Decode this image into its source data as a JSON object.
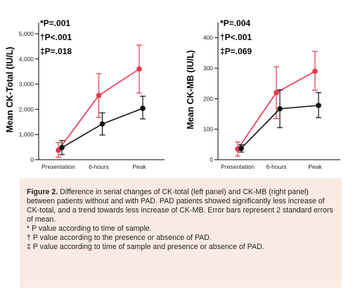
{
  "colors": {
    "pad": "#e8364e",
    "no_pad": "#111111",
    "caption_bg": "#f9ebe4"
  },
  "chart_data": [
    {
      "type": "line",
      "ylabel": "Mean CK-Total (IU/L)",
      "ylim": [
        0,
        5000
      ],
      "yticks": [
        "0",
        "1,000",
        "2,000",
        "3,000",
        "4,000",
        "5,000"
      ],
      "yticks_values": [
        0,
        1000,
        2000,
        3000,
        4000,
        5000
      ],
      "categories": [
        "Presentation",
        "6-hours",
        "Peak"
      ],
      "pvalues": [
        "*P=.001",
        "†P<.001",
        "‡P=.018"
      ],
      "series": [
        {
          "values": [
            380,
            2550,
            3600
          ],
          "err_low": [
            100,
            1680,
            2650
          ],
          "err_high": [
            680,
            3420,
            4550
          ]
        },
        {
          "values": [
            480,
            1420,
            2040
          ],
          "err_low": [
            200,
            980,
            1620
          ],
          "err_high": [
            760,
            1860,
            2520
          ]
        }
      ]
    },
    {
      "type": "line",
      "ylabel": "Mean CK-MB (IU/L)",
      "ylim": [
        0,
        420
      ],
      "yticks": [
        "0",
        "100",
        "200",
        "300",
        "400"
      ],
      "yticks_values": [
        0,
        100,
        200,
        300,
        400
      ],
      "categories": [
        "Presentation",
        "6-hours",
        "Peak"
      ],
      "pvalues": [
        "*P=.004",
        "†P<.001",
        "‡P=.069"
      ],
      "series": [
        {
          "values": [
            35,
            220,
            290
          ],
          "err_low": [
            12,
            135,
            228
          ],
          "err_high": [
            58,
            305,
            355
          ]
        },
        {
          "values": [
            37,
            167,
            178
          ],
          "err_low": [
            25,
            105,
            138
          ],
          "err_high": [
            49,
            229,
            220
          ]
        }
      ]
    }
  ],
  "caption": {
    "label": "Figure 2.",
    "text": " Difference in serial changes of CK-total (left panel) and CK-MB (right panel) between patients without and with PAD. PAD patients showed significantly less increase of CK-total, and a trend towards less increase of CK-MB. Error bars represent 2 standard errors of mean.",
    "notes": [
      "* P value according to time of sample.",
      "† P value according to the presence or absence of PAD.",
      "‡ P value according to time of sample and presence or absence of PAD."
    ]
  }
}
